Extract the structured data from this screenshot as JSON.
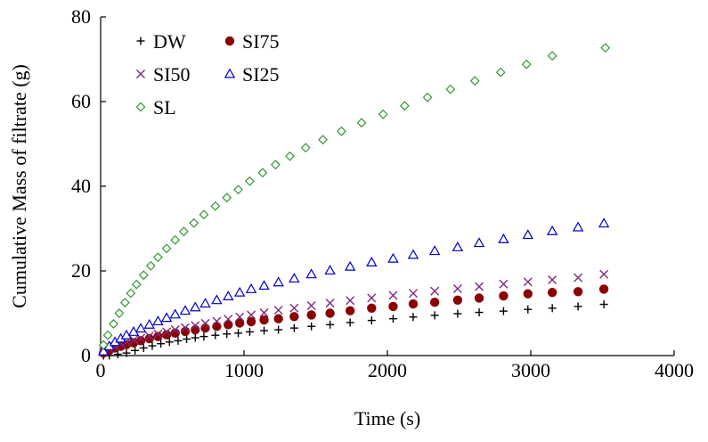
{
  "chart_data": {
    "type": "scatter",
    "title": "",
    "xlabel": "Time (s)",
    "ylabel": "Cumulative Mass of filtrate (g)",
    "xlim": [
      0,
      4000
    ],
    "ylim": [
      0,
      80
    ],
    "xticks": [
      0,
      1000,
      2000,
      3000,
      4000
    ],
    "yticks": [
      0,
      20,
      40,
      60,
      80
    ],
    "grid": false,
    "legend_position": "top-left",
    "series": [
      {
        "name": "DW",
        "marker": "plus",
        "color": "#000000",
        "points": [
          [
            20,
            0
          ],
          [
            60,
            0
          ],
          [
            120,
            0.3
          ],
          [
            180,
            0.6
          ],
          [
            240,
            1.2
          ],
          [
            300,
            1.8
          ],
          [
            360,
            2.3
          ],
          [
            420,
            2.8
          ],
          [
            480,
            3.2
          ],
          [
            540,
            3.5
          ],
          [
            600,
            3.9
          ],
          [
            660,
            4.2
          ],
          [
            720,
            4.5
          ],
          [
            800,
            4.8
          ],
          [
            880,
            5.1
          ],
          [
            960,
            5.3
          ],
          [
            1040,
            5.6
          ],
          [
            1140,
            5.9
          ],
          [
            1240,
            6.1
          ],
          [
            1350,
            6.5
          ],
          [
            1470,
            6.9
          ],
          [
            1600,
            7.3
          ],
          [
            1740,
            7.8
          ],
          [
            1890,
            8.3
          ],
          [
            2040,
            8.7
          ],
          [
            2180,
            9.1
          ],
          [
            2330,
            9.5
          ],
          [
            2490,
            9.9
          ],
          [
            2640,
            10.2
          ],
          [
            2810,
            10.5
          ],
          [
            2980,
            10.9
          ],
          [
            3150,
            11.2
          ],
          [
            3330,
            11.6
          ],
          [
            3510,
            12.1
          ]
        ]
      },
      {
        "name": "SI75",
        "marker": "filled-circle",
        "color": "#8b0000",
        "points": [
          [
            20,
            0.6
          ],
          [
            60,
            1.2
          ],
          [
            100,
            1.8
          ],
          [
            140,
            2.2
          ],
          [
            180,
            2.6
          ],
          [
            230,
            3.0
          ],
          [
            280,
            3.5
          ],
          [
            340,
            4.0
          ],
          [
            400,
            4.5
          ],
          [
            460,
            4.9
          ],
          [
            520,
            5.3
          ],
          [
            590,
            5.7
          ],
          [
            660,
            6.1
          ],
          [
            730,
            6.5
          ],
          [
            810,
            6.9
          ],
          [
            890,
            7.3
          ],
          [
            970,
            7.7
          ],
          [
            1050,
            8.0
          ],
          [
            1140,
            8.4
          ],
          [
            1240,
            8.7
          ],
          [
            1350,
            9.2
          ],
          [
            1470,
            9.6
          ],
          [
            1600,
            10.0
          ],
          [
            1740,
            10.6
          ],
          [
            1890,
            11.2
          ],
          [
            2040,
            11.6
          ],
          [
            2180,
            12.2
          ],
          [
            2330,
            12.6
          ],
          [
            2490,
            13.1
          ],
          [
            2640,
            13.6
          ],
          [
            2810,
            14.1
          ],
          [
            2980,
            14.6
          ],
          [
            3150,
            14.9
          ],
          [
            3330,
            15.1
          ],
          [
            3510,
            15.7
          ]
        ]
      },
      {
        "name": "SI50",
        "marker": "x",
        "color": "#7f2a7f",
        "points": [
          [
            20,
            0.8
          ],
          [
            60,
            1.6
          ],
          [
            100,
            2.2
          ],
          [
            140,
            2.8
          ],
          [
            180,
            3.2
          ],
          [
            230,
            3.7
          ],
          [
            280,
            4.1
          ],
          [
            340,
            4.6
          ],
          [
            400,
            5.1
          ],
          [
            460,
            5.6
          ],
          [
            520,
            6.1
          ],
          [
            590,
            6.6
          ],
          [
            660,
            7.1
          ],
          [
            730,
            7.6
          ],
          [
            810,
            8.1
          ],
          [
            890,
            8.6
          ],
          [
            970,
            9.1
          ],
          [
            1050,
            9.6
          ],
          [
            1140,
            10.1
          ],
          [
            1240,
            10.7
          ],
          [
            1350,
            11.2
          ],
          [
            1470,
            11.8
          ],
          [
            1600,
            12.4
          ],
          [
            1740,
            13.0
          ],
          [
            1890,
            13.6
          ],
          [
            2040,
            14.2
          ],
          [
            2180,
            14.7
          ],
          [
            2330,
            15.2
          ],
          [
            2490,
            15.8
          ],
          [
            2640,
            16.3
          ],
          [
            2810,
            16.9
          ],
          [
            2980,
            17.4
          ],
          [
            3150,
            17.9
          ],
          [
            3330,
            18.4
          ],
          [
            3510,
            19.2
          ]
        ]
      },
      {
        "name": "SI25",
        "marker": "open-triangle",
        "color": "#0000cc",
        "points": [
          [
            20,
            1.0
          ],
          [
            60,
            2.2
          ],
          [
            100,
            3.2
          ],
          [
            140,
            4.0
          ],
          [
            180,
            4.8
          ],
          [
            230,
            5.6
          ],
          [
            280,
            6.4
          ],
          [
            340,
            7.3
          ],
          [
            400,
            8.1
          ],
          [
            460,
            8.9
          ],
          [
            520,
            9.7
          ],
          [
            590,
            10.6
          ],
          [
            660,
            11.4
          ],
          [
            730,
            12.3
          ],
          [
            810,
            13.1
          ],
          [
            890,
            14.0
          ],
          [
            970,
            14.9
          ],
          [
            1050,
            15.7
          ],
          [
            1140,
            16.5
          ],
          [
            1240,
            17.3
          ],
          [
            1350,
            18.2
          ],
          [
            1470,
            19.2
          ],
          [
            1600,
            20.1
          ],
          [
            1740,
            21.0
          ],
          [
            1890,
            22.0
          ],
          [
            2040,
            22.9
          ],
          [
            2180,
            23.8
          ],
          [
            2330,
            24.7
          ],
          [
            2490,
            25.6
          ],
          [
            2640,
            26.6
          ],
          [
            2810,
            27.5
          ],
          [
            2980,
            28.5
          ],
          [
            3150,
            29.4
          ],
          [
            3330,
            30.3
          ],
          [
            3510,
            31.2
          ]
        ]
      },
      {
        "name": "SL",
        "marker": "open-diamond",
        "color": "#339933",
        "points": [
          [
            20,
            2.5
          ],
          [
            50,
            4.8
          ],
          [
            90,
            7.5
          ],
          [
            130,
            10.0
          ],
          [
            170,
            12.5
          ],
          [
            210,
            14.7
          ],
          [
            250,
            16.8
          ],
          [
            300,
            19.0
          ],
          [
            350,
            21.2
          ],
          [
            400,
            23.2
          ],
          [
            460,
            25.3
          ],
          [
            520,
            27.3
          ],
          [
            580,
            29.3
          ],
          [
            650,
            31.3
          ],
          [
            720,
            33.3
          ],
          [
            800,
            35.3
          ],
          [
            880,
            37.3
          ],
          [
            960,
            39.2
          ],
          [
            1040,
            41.2
          ],
          [
            1130,
            43.2
          ],
          [
            1220,
            45.1
          ],
          [
            1320,
            47.1
          ],
          [
            1430,
            49.1
          ],
          [
            1550,
            51.0
          ],
          [
            1680,
            53.0
          ],
          [
            1820,
            55.0
          ],
          [
            1970,
            57.0
          ],
          [
            2120,
            59.0
          ],
          [
            2280,
            61.0
          ],
          [
            2440,
            62.9
          ],
          [
            2610,
            64.9
          ],
          [
            2790,
            66.9
          ],
          [
            2970,
            68.8
          ],
          [
            3150,
            70.8
          ],
          [
            3520,
            72.7
          ]
        ]
      }
    ]
  }
}
